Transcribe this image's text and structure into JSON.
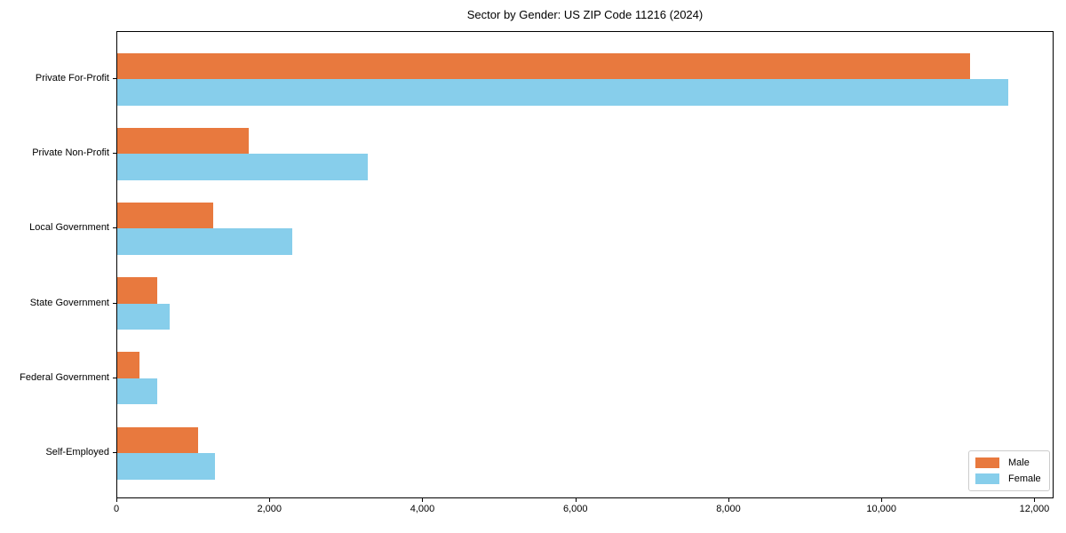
{
  "title": "Sector by Gender: US ZIP Code 11216 (2024)",
  "chart_data": {
    "type": "bar",
    "orientation": "horizontal",
    "title": "Sector by Gender: US ZIP Code 11216 (2024)",
    "xlabel": "",
    "ylabel": "",
    "categories": [
      "Private For-Profit",
      "Private Non-Profit",
      "Local Government",
      "State Government",
      "Federal Government",
      "Self-Employed"
    ],
    "series": [
      {
        "name": "Male",
        "color": "#e8793e",
        "values": [
          11150,
          1720,
          1250,
          520,
          290,
          1060
        ]
      },
      {
        "name": "Female",
        "color": "#87ceeb",
        "values": [
          11650,
          3270,
          2290,
          690,
          520,
          1280
        ]
      }
    ],
    "xlim": [
      0,
      12250
    ],
    "xticks": [
      0,
      2000,
      4000,
      6000,
      8000,
      10000,
      12000
    ],
    "xtick_labels": [
      "0",
      "2,000",
      "4,000",
      "6,000",
      "8,000",
      "10,000",
      "12,000"
    ],
    "grid": false,
    "legend": {
      "position": "lower right"
    }
  },
  "colors": {
    "male": "#e8793e",
    "female": "#87ceeb",
    "spine": "#000000",
    "legend_border": "#cccccc"
  }
}
